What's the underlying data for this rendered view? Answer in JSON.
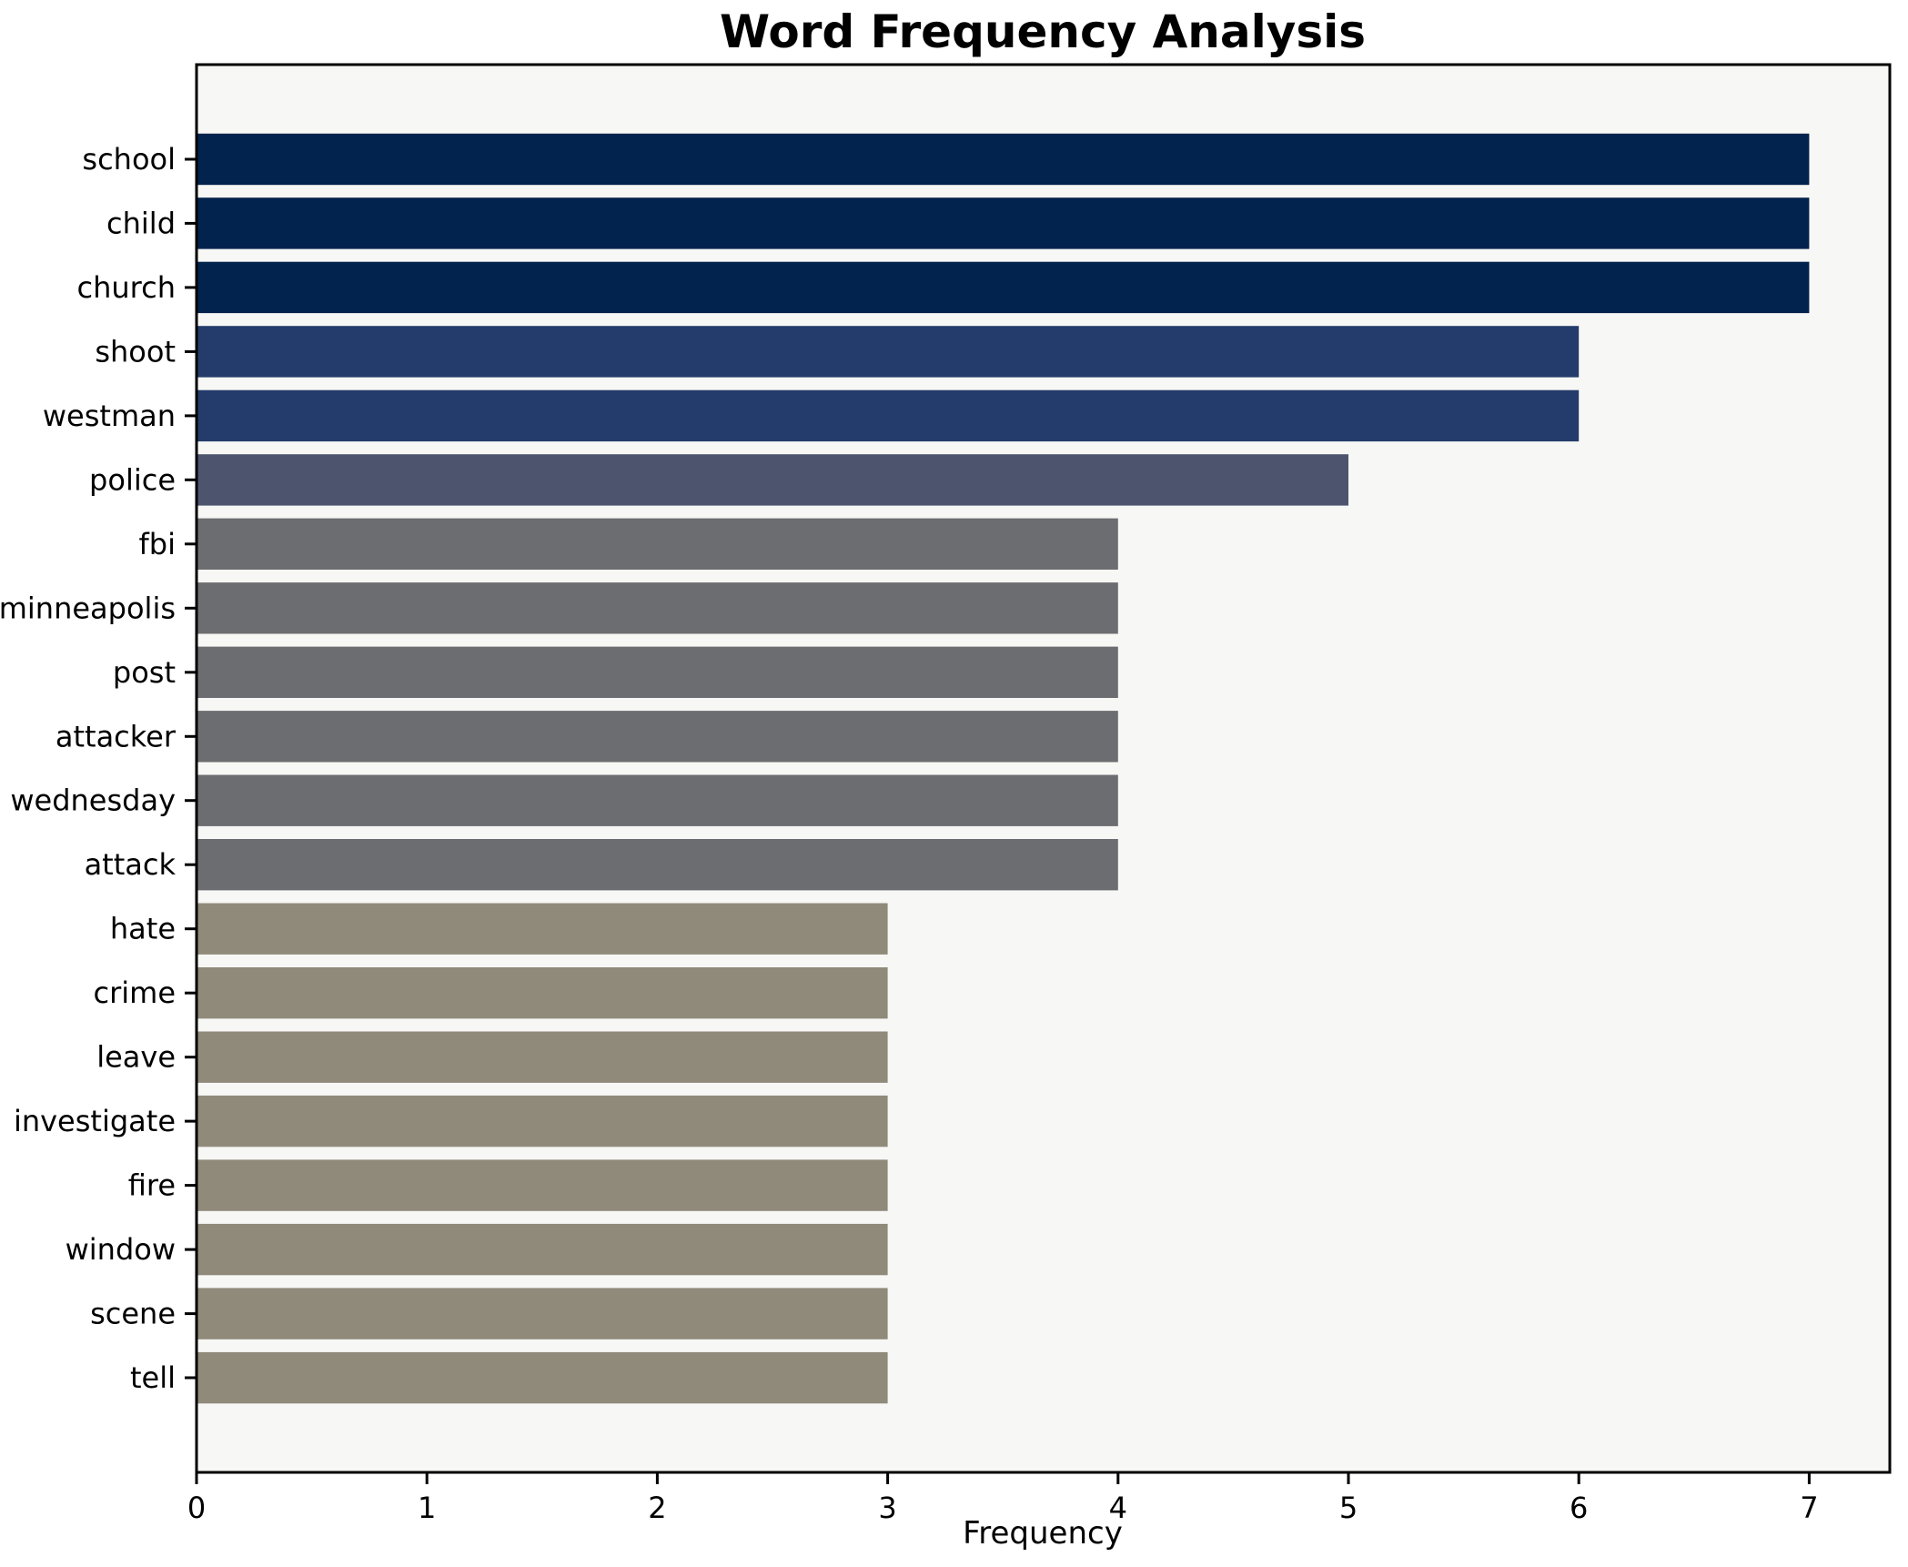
{
  "chart_data": {
    "type": "bar",
    "orientation": "horizontal",
    "title": "Word Frequency Analysis",
    "xlabel": "Frequency",
    "ylabel": "",
    "categories": [
      "school",
      "child",
      "church",
      "shoot",
      "westman",
      "police",
      "fbi",
      "minneapolis",
      "post",
      "attacker",
      "wednesday",
      "attack",
      "hate",
      "crime",
      "leave",
      "investigate",
      "fire",
      "window",
      "scene",
      "tell"
    ],
    "values": [
      7,
      7,
      7,
      6,
      6,
      5,
      4,
      4,
      4,
      4,
      4,
      4,
      3,
      3,
      3,
      3,
      3,
      3,
      3,
      3
    ],
    "x_ticks": [
      0,
      1,
      2,
      3,
      4,
      5,
      6,
      7
    ],
    "xlim": [
      0,
      7.35
    ],
    "grid": false,
    "legend": "none",
    "value_colors": {
      "7": "#02234d",
      "6": "#233c6b",
      "5": "#4d556e",
      "4": "#6c6d71",
      "3": "#908a7b"
    },
    "colors": {
      "plot_background": "#f7f7f5",
      "figure_background": "#ffffff",
      "axis": "#000000",
      "text": "#000000"
    }
  }
}
